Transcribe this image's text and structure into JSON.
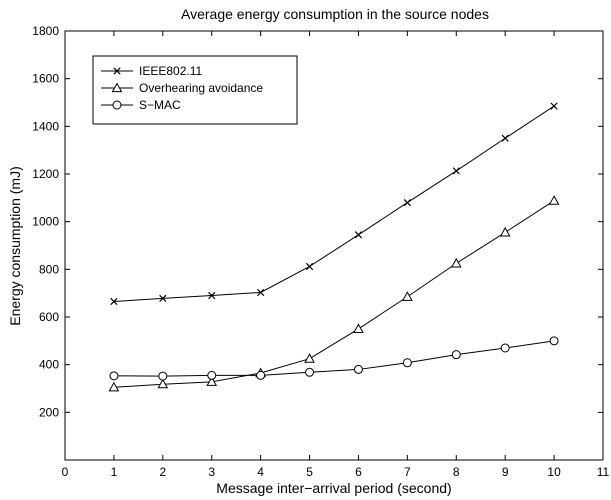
{
  "chart_data": {
    "type": "line",
    "title": "Average energy consumption in the source nodes",
    "xlabel": "Message inter−arrival period (second)",
    "ylabel": "Energy consumption (mJ)",
    "xlim": [
      0,
      11
    ],
    "ylim": [
      0,
      1800
    ],
    "xticks": [
      0,
      1,
      2,
      3,
      4,
      5,
      6,
      7,
      8,
      9,
      10,
      11
    ],
    "yticks": [
      200,
      400,
      600,
      800,
      1000,
      1200,
      1400,
      1600,
      1800
    ],
    "grid": false,
    "legend_position": "top-left",
    "x": [
      1,
      2,
      3,
      4,
      5,
      6,
      7,
      8,
      9,
      10
    ],
    "series": [
      {
        "name": "IEEE802.11",
        "marker": "x",
        "values": [
          665,
          678,
          690,
          703,
          812,
          945,
          1080,
          1213,
          1350,
          1485
        ]
      },
      {
        "name": "Overhearing avoidance",
        "marker": "triangle",
        "values": [
          305,
          318,
          328,
          365,
          425,
          550,
          685,
          825,
          955,
          1088
        ]
      },
      {
        "name": "S−MAC",
        "marker": "circle",
        "values": [
          353,
          352,
          355,
          355,
          368,
          380,
          408,
          442,
          470,
          500
        ]
      }
    ]
  }
}
